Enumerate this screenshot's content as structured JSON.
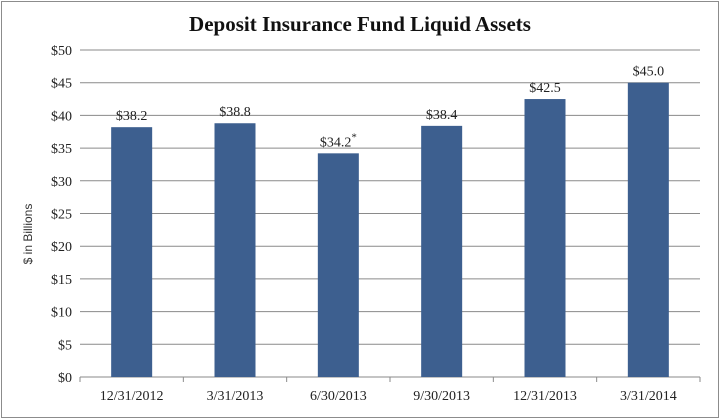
{
  "chart_data": {
    "type": "bar",
    "title": "Deposit Insurance Fund Liquid Assets",
    "ylabel": "$ in Billions",
    "xlabel": "",
    "categories": [
      "12/31/2012",
      "3/31/2013",
      "6/30/2013",
      "9/30/2013",
      "12/31/2013",
      "3/31/2014"
    ],
    "values": [
      38.2,
      38.8,
      34.2,
      38.4,
      42.5,
      45.0
    ],
    "data_labels": [
      "$38.2",
      "$38.8",
      "$34.2",
      "$38.4",
      "$42.5",
      "$45.0"
    ],
    "annotations": [
      "",
      "",
      "*",
      "",
      "",
      ""
    ],
    "ylim": [
      0,
      50
    ],
    "yticks": [
      0,
      5,
      10,
      15,
      20,
      25,
      30,
      35,
      40,
      45,
      50
    ],
    "ytick_labels": [
      "$0",
      "$5",
      "$10",
      "$15",
      "$20",
      "$25",
      "$30",
      "$35",
      "$40",
      "$45",
      "$50"
    ],
    "grid": true,
    "bar_color": "#3d5f8f"
  }
}
